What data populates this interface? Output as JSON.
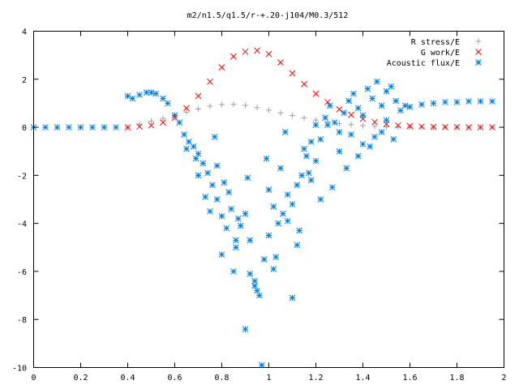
{
  "chart_data": {
    "type": "scatter",
    "title": "m2/n1.5/q1.5/r-+.20-j104/M0.3/512",
    "xlabel": "",
    "ylabel": "",
    "xlim": [
      0,
      2
    ],
    "ylim": [
      -10,
      4
    ],
    "x_ticks": [
      "0",
      "0.2",
      "0.4",
      "0.6",
      "0.8",
      "1",
      "1.2",
      "1.4",
      "1.6",
      "1.8",
      "2"
    ],
    "y_ticks": [
      "4",
      "2",
      "0",
      "-2",
      "-4",
      "-6",
      "-8",
      "-10"
    ],
    "grid": false,
    "legend_position": "top-right",
    "series": [
      {
        "name": "R stress/E",
        "marker": "plus",
        "color": "#a0a0a0",
        "x": [
          0.4,
          0.45,
          0.5,
          0.55,
          0.6,
          0.65,
          0.7,
          0.75,
          0.8,
          0.85,
          0.9,
          0.95,
          1.0,
          1.05,
          1.1,
          1.15,
          1.2,
          1.25,
          1.3,
          1.35,
          1.4,
          1.45,
          1.5,
          1.55,
          1.6,
          1.65,
          1.7,
          1.75,
          1.8,
          1.85,
          1.9,
          1.95
        ],
        "y": [
          0.0,
          0.13,
          0.25,
          0.37,
          0.5,
          0.63,
          0.76,
          0.88,
          0.95,
          0.96,
          0.91,
          0.82,
          0.71,
          0.6,
          0.49,
          0.39,
          0.3,
          0.22,
          0.16,
          0.11,
          0.07,
          0.04,
          0.02,
          0.01,
          0.01,
          0.0,
          0.0,
          0.0,
          0.0,
          0.0,
          0.0,
          0.0
        ]
      },
      {
        "name": "G work/E",
        "marker": "cross",
        "color": "#ff0000",
        "x": [
          0.4,
          0.45,
          0.5,
          0.55,
          0.6,
          0.65,
          0.7,
          0.75,
          0.8,
          0.85,
          0.9,
          0.95,
          1.0,
          1.05,
          1.1,
          1.15,
          1.2,
          1.25,
          1.3,
          1.35,
          1.4,
          1.45,
          1.5,
          1.55,
          1.6,
          1.65,
          1.7,
          1.75,
          1.8,
          1.85,
          1.9,
          1.95
        ],
        "y": [
          0.0,
          0.03,
          0.08,
          0.2,
          0.4,
          0.8,
          1.3,
          1.9,
          2.5,
          2.95,
          3.15,
          3.2,
          3.05,
          2.7,
          2.25,
          1.8,
          1.4,
          1.05,
          0.75,
          0.52,
          0.35,
          0.22,
          0.14,
          0.08,
          0.05,
          0.03,
          0.02,
          0.01,
          0.01,
          0.0,
          0.0,
          0.0
        ]
      },
      {
        "name": "Acoustic flux/E",
        "marker": "star",
        "color": "#0080e0",
        "x": [
          0.0,
          0.05,
          0.1,
          0.15,
          0.2,
          0.25,
          0.3,
          0.35,
          0.4,
          0.42,
          0.45,
          0.48,
          0.5,
          0.52,
          0.55,
          0.57,
          0.6,
          0.62,
          0.64,
          0.66,
          0.68,
          0.7,
          0.72,
          0.74,
          0.76,
          0.78,
          0.8,
          0.82,
          0.84,
          0.86,
          0.88,
          0.9,
          0.92,
          0.94,
          0.96,
          0.98,
          1.0,
          1.02,
          1.04,
          1.06,
          1.08,
          1.1,
          1.12,
          1.14,
          1.16,
          1.18,
          1.2,
          1.22,
          1.24,
          1.26,
          1.28,
          1.3,
          1.32,
          1.34,
          1.36,
          1.38,
          1.4,
          1.42,
          1.44,
          1.46,
          1.48,
          1.5,
          1.52,
          1.54,
          1.56,
          1.58,
          1.6,
          1.65,
          1.7,
          1.75,
          1.8,
          1.85,
          1.9,
          1.95,
          0.65,
          0.7,
          0.75,
          0.78,
          0.8,
          0.83,
          0.85,
          0.87,
          0.9,
          0.92,
          0.95,
          0.97,
          1.0,
          1.03,
          1.05,
          1.08,
          1.1,
          1.13,
          1.15,
          1.18,
          1.2,
          1.25,
          1.3,
          1.35,
          1.4,
          1.45,
          1.5,
          0.69,
          0.73,
          0.77,
          0.81,
          0.86,
          0.91,
          0.94,
          0.99,
          1.02,
          1.07,
          1.12,
          1.17,
          1.22,
          1.27,
          1.33,
          1.38,
          1.43,
          1.48,
          1.53
        ],
        "y": [
          0.0,
          0.0,
          0.0,
          0.0,
          0.0,
          0.0,
          0.0,
          0.0,
          1.3,
          1.2,
          1.35,
          1.45,
          1.45,
          1.4,
          1.2,
          1.0,
          0.5,
          0.2,
          -0.3,
          -0.6,
          -0.8,
          -1.1,
          -1.5,
          -1.9,
          -2.4,
          -3.0,
          -3.7,
          -4.2,
          -3.4,
          -5.0,
          -4.1,
          -3.6,
          -6.1,
          -6.4,
          -7.0,
          -5.5,
          -4.5,
          -5.9,
          -4.0,
          -3.6,
          -2.8,
          -3.2,
          -2.4,
          -2.0,
          -1.2,
          -0.6,
          0.1,
          -0.5,
          0.4,
          0.9,
          0.2,
          -0.2,
          0.6,
          1.1,
          1.4,
          0.8,
          0.5,
          1.6,
          1.2,
          1.9,
          0.9,
          1.5,
          1.7,
          1.1,
          0.7,
          0.9,
          0.85,
          0.95,
          1.0,
          1.05,
          1.05,
          1.08,
          1.08,
          1.08,
          -0.9,
          -2.0,
          -3.5,
          -1.6,
          -5.3,
          -2.7,
          -6.0,
          -3.8,
          -8.4,
          -4.7,
          -6.8,
          -9.9,
          -2.6,
          -5.4,
          -1.7,
          -3.9,
          -7.1,
          -4.3,
          -0.9,
          -2.2,
          -1.4,
          0.1,
          -1.0,
          -0.3,
          -0.7,
          -0.4,
          0.3,
          -1.3,
          -2.9,
          -0.4,
          -2.3,
          -4.7,
          -2.1,
          -6.6,
          -1.3,
          -3.3,
          -0.2,
          -4.9,
          -1.9,
          -3.0,
          -2.5,
          -1.7,
          -1.2,
          -0.8,
          -0.2,
          -0.5
        ]
      }
    ]
  }
}
